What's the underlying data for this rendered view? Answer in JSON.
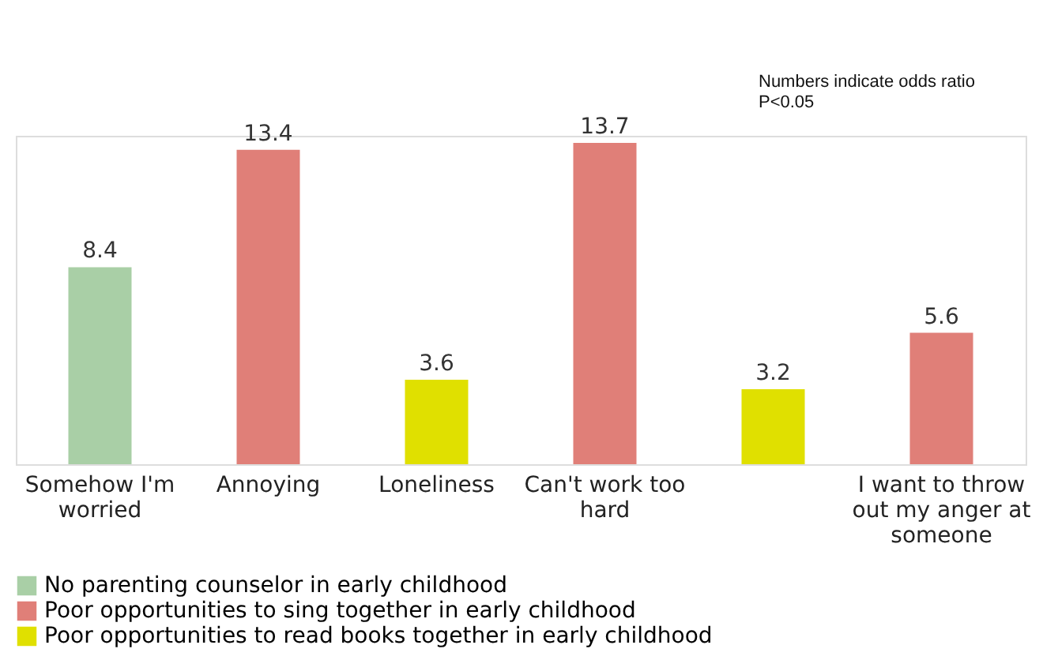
{
  "chart_data": {
    "type": "bar",
    "categories": [
      "Somehow I'm worried",
      "Annoying",
      "Loneliness",
      "Can't work too hard",
      null,
      "I want to throw out my anger at someone"
    ],
    "series": [
      {
        "name": "No parenting counselor in early childhood",
        "color": "#a9cfa6",
        "values": [
          8.4,
          null,
          null,
          null,
          null,
          null
        ]
      },
      {
        "name": "Poor opportunities to sing together in early childhood",
        "color": "#e07f78",
        "values": [
          null,
          13.4,
          null,
          13.7,
          null,
          5.6
        ]
      },
      {
        "name": "Poor opportunities to read books together in early childhood",
        "color": "#e0e000",
        "values": [
          null,
          null,
          3.6,
          null,
          3.2,
          null
        ]
      }
    ],
    "data_labels": true,
    "legend": "bottom",
    "grid": false,
    "annotations": [
      "Numbers indicate odds ratio",
      "P<0.05"
    ]
  }
}
